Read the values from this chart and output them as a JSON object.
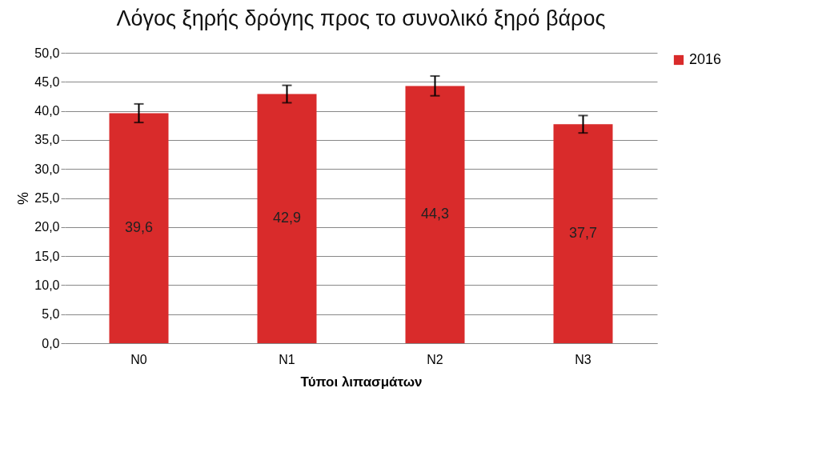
{
  "chart_data": {
    "type": "bar",
    "title": "Λόγος ξηρής δρόγης προς το συνολικό ξηρό βάρος",
    "xlabel": "Τύποι λιπασμάτων",
    "ylabel": "%",
    "categories": [
      "N0",
      "N1",
      "N2",
      "N3"
    ],
    "series": [
      {
        "name": "2016",
        "color": "#d92b2b",
        "values": [
          39.6,
          42.9,
          44.3,
          37.7
        ],
        "errors": [
          1.6,
          1.5,
          1.7,
          1.5
        ],
        "value_labels": [
          "39,6",
          "42,9",
          "44,3",
          "37,7"
        ]
      }
    ],
    "ylim": [
      0,
      50
    ],
    "yticks": [
      {
        "value": 0,
        "label": "0,0"
      },
      {
        "value": 5,
        "label": "5,0"
      },
      {
        "value": 10,
        "label": "10,0"
      },
      {
        "value": 15,
        "label": "15,0"
      },
      {
        "value": 20,
        "label": "20,0"
      },
      {
        "value": 25,
        "label": "25,0"
      },
      {
        "value": 30,
        "label": "30,0"
      },
      {
        "value": 35,
        "label": "35,0"
      },
      {
        "value": 40,
        "label": "40,0"
      },
      {
        "value": 45,
        "label": "45,0"
      },
      {
        "value": 50,
        "label": "50,0"
      }
    ],
    "grid": "y",
    "legend": "right"
  }
}
